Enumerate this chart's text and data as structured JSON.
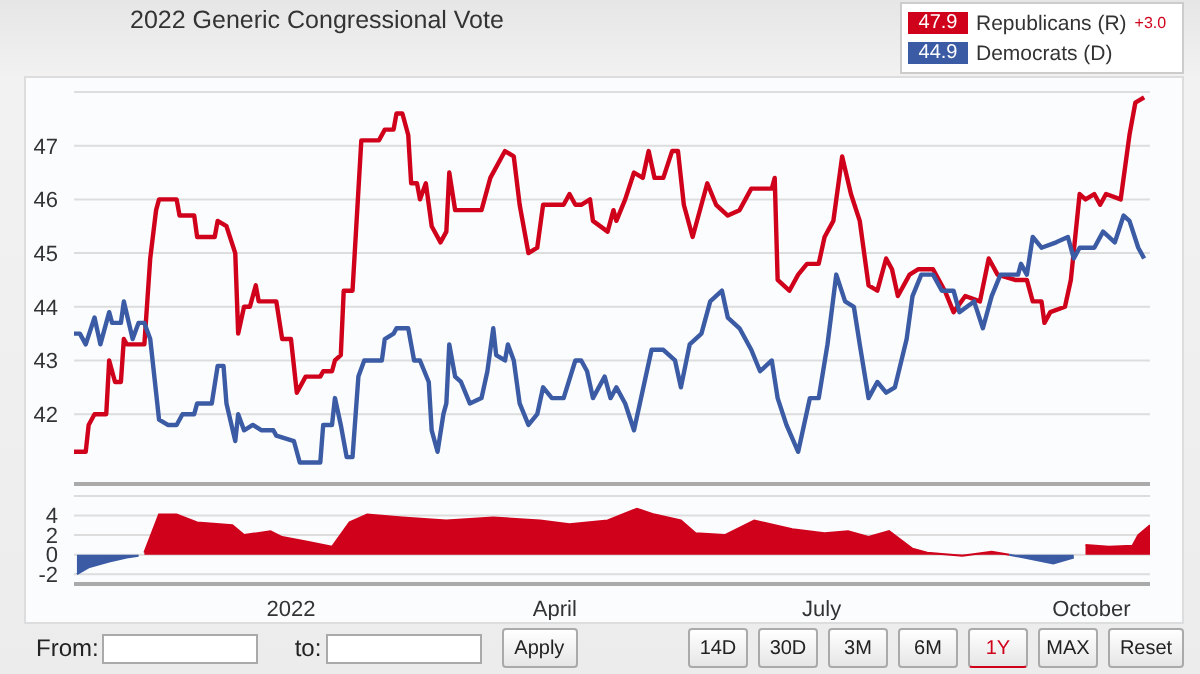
{
  "chart_data": [
    {
      "type": "line",
      "title": "2022 Generic Congressional Vote",
      "ylim": [
        40.7,
        48.0
      ],
      "yticks": [
        42,
        43,
        44,
        45,
        46,
        47
      ],
      "xlim": [
        "2021-10-19",
        "2022-10-21"
      ],
      "grid": "y",
      "legend": "top right",
      "tick_labels": "y",
      "annotations": [
        "47.9",
        "+3.0",
        "44.9"
      ],
      "series": [
        {
          "name": "Republicans (R)",
          "color": "#d0021b",
          "x": [
            "2021-10-19",
            "2021-10-23",
            "2021-10-24",
            "2021-10-26",
            "2021-10-30",
            "2021-10-31",
            "2021-11-02",
            "2021-11-04",
            "2021-11-05",
            "2021-11-06",
            "2021-11-12",
            "2021-11-14",
            "2021-11-16",
            "2021-11-17",
            "2021-11-23",
            "2021-11-24",
            "2021-11-29",
            "2021-11-30",
            "2021-12-06",
            "2021-12-07",
            "2021-12-10",
            "2021-12-13",
            "2021-12-14",
            "2021-12-16",
            "2021-12-18",
            "2021-12-20",
            "2021-12-21",
            "2021-12-27",
            "2021-12-29",
            "2022-01-01",
            "2022-01-03",
            "2022-01-06",
            "2022-01-11",
            "2022-01-12",
            "2022-01-15",
            "2022-01-16",
            "2022-01-18",
            "2022-01-19",
            "2022-01-22",
            "2022-01-25",
            "2022-01-31",
            "2022-02-02",
            "2022-02-05",
            "2022-02-06",
            "2022-02-08",
            "2022-02-10",
            "2022-02-11",
            "2022-02-13",
            "2022-02-14",
            "2022-02-16",
            "2022-02-18",
            "2022-02-21",
            "2022-02-23",
            "2022-02-24",
            "2022-02-26",
            "2022-03-07",
            "2022-03-10",
            "2022-03-12",
            "2022-03-15",
            "2022-03-18",
            "2022-03-20",
            "2022-03-23",
            "2022-03-26",
            "2022-03-28",
            "2022-04-04",
            "2022-04-06",
            "2022-04-08",
            "2022-04-10",
            "2022-04-13",
            "2022-04-14",
            "2022-04-19",
            "2022-04-21",
            "2022-04-22",
            "2022-04-25",
            "2022-04-28",
            "2022-05-01",
            "2022-05-03",
            "2022-05-05",
            "2022-05-08",
            "2022-05-11",
            "2022-05-13",
            "2022-05-15",
            "2022-05-18",
            "2022-05-23",
            "2022-05-26",
            "2022-05-30",
            "2022-06-03",
            "2022-06-07",
            "2022-06-14",
            "2022-06-15",
            "2022-06-16",
            "2022-06-20",
            "2022-06-23",
            "2022-06-26",
            "2022-06-30",
            "2022-07-02",
            "2022-07-05",
            "2022-07-08",
            "2022-07-11",
            "2022-07-14",
            "2022-07-17",
            "2022-07-20",
            "2022-07-23",
            "2022-07-25",
            "2022-07-27",
            "2022-07-31",
            "2022-08-03",
            "2022-08-08",
            "2022-08-12",
            "2022-08-15",
            "2022-08-19",
            "2022-08-24",
            "2022-08-27",
            "2022-08-30",
            "2022-09-05",
            "2022-09-09",
            "2022-09-11",
            "2022-09-14",
            "2022-09-15",
            "2022-09-17",
            "2022-09-22",
            "2022-09-24",
            "2022-09-27",
            "2022-09-29",
            "2022-10-02",
            "2022-10-04",
            "2022-10-06",
            "2022-10-11",
            "2022-10-14",
            "2022-10-16",
            "2022-10-19"
          ],
          "values": [
            41.3,
            41.3,
            41.8,
            42.0,
            42.0,
            43.0,
            42.6,
            42.6,
            43.4,
            43.3,
            43.3,
            44.9,
            45.8,
            46.0,
            46.0,
            45.7,
            45.7,
            45.3,
            45.3,
            45.6,
            45.5,
            45.0,
            43.5,
            44.0,
            44.0,
            44.4,
            44.1,
            44.1,
            43.4,
            43.4,
            42.4,
            42.7,
            42.7,
            42.8,
            42.8,
            43.0,
            43.1,
            44.3,
            44.3,
            47.1,
            47.1,
            47.3,
            47.3,
            47.6,
            47.6,
            47.2,
            46.3,
            46.3,
            46.0,
            46.3,
            45.5,
            45.2,
            45.4,
            46.5,
            45.8,
            45.8,
            46.4,
            46.6,
            46.9,
            46.8,
            45.9,
            45.0,
            45.1,
            45.9,
            45.9,
            46.1,
            45.9,
            45.9,
            46.0,
            45.6,
            45.4,
            45.8,
            45.6,
            46.0,
            46.5,
            46.4,
            46.9,
            46.4,
            46.4,
            46.9,
            46.9,
            45.9,
            45.3,
            46.3,
            45.9,
            45.7,
            45.8,
            46.2,
            46.2,
            46.4,
            44.5,
            44.3,
            44.6,
            44.8,
            44.8,
            45.3,
            45.6,
            46.8,
            46.1,
            45.6,
            44.4,
            44.3,
            44.9,
            44.7,
            44.2,
            44.6,
            44.7,
            44.7,
            44.3,
            43.9,
            44.2,
            44.1,
            44.9,
            44.6,
            44.5,
            44.5,
            44.1,
            44.1,
            43.7,
            43.9,
            44.0,
            44.5,
            46.1,
            46.0,
            46.1,
            45.9,
            46.1,
            46.0,
            47.2,
            47.8,
            47.9
          ]
        },
        {
          "name": "Democrats (D)",
          "color": "#3b5ba5",
          "x": [
            "2021-10-19",
            "2021-10-21",
            "2021-10-23",
            "2021-10-26",
            "2021-10-28",
            "2021-10-31",
            "2021-11-01",
            "2021-11-04",
            "2021-11-05",
            "2021-11-08",
            "2021-11-10",
            "2021-11-12",
            "2021-11-14",
            "2021-11-17",
            "2021-11-20",
            "2021-11-23",
            "2021-11-25",
            "2021-11-29",
            "2021-11-30",
            "2021-12-05",
            "2021-12-07",
            "2021-12-09",
            "2021-12-10",
            "2021-12-13",
            "2021-12-14",
            "2021-12-16",
            "2021-12-19",
            "2021-12-22",
            "2021-12-26",
            "2021-12-27",
            "2022-01-02",
            "2022-01-04",
            "2022-01-11",
            "2022-01-12",
            "2022-01-15",
            "2022-01-16",
            "2022-01-18",
            "2022-01-20",
            "2022-01-22",
            "2022-01-24",
            "2022-01-26",
            "2022-02-01",
            "2022-02-02",
            "2022-02-05",
            "2022-02-06",
            "2022-02-10",
            "2022-02-12",
            "2022-02-14",
            "2022-02-17",
            "2022-02-18",
            "2022-02-20",
            "2022-02-22",
            "2022-02-23",
            "2022-02-24",
            "2022-02-26",
            "2022-02-28",
            "2022-03-03",
            "2022-03-07",
            "2022-03-09",
            "2022-03-11",
            "2022-03-12",
            "2022-03-15",
            "2022-03-16",
            "2022-03-18",
            "2022-03-20",
            "2022-03-23",
            "2022-03-26",
            "2022-03-28",
            "2022-03-31",
            "2022-04-04",
            "2022-04-08",
            "2022-04-10",
            "2022-04-12",
            "2022-04-14",
            "2022-04-18",
            "2022-04-20",
            "2022-04-22",
            "2022-04-25",
            "2022-04-28",
            "2022-04-30",
            "2022-05-04",
            "2022-05-08",
            "2022-05-12",
            "2022-05-14",
            "2022-05-17",
            "2022-05-21",
            "2022-05-24",
            "2022-05-28",
            "2022-05-30",
            "2022-06-03",
            "2022-06-07",
            "2022-06-10",
            "2022-06-14",
            "2022-06-16",
            "2022-06-19",
            "2022-06-23",
            "2022-06-27",
            "2022-06-30",
            "2022-07-03",
            "2022-07-06",
            "2022-07-09",
            "2022-07-12",
            "2022-07-14",
            "2022-07-17",
            "2022-07-20",
            "2022-07-23",
            "2022-07-26",
            "2022-07-30",
            "2022-08-01",
            "2022-08-04",
            "2022-08-08",
            "2022-08-11",
            "2022-08-15",
            "2022-08-17",
            "2022-08-22",
            "2022-08-25",
            "2022-08-28",
            "2022-08-31",
            "2022-09-06",
            "2022-09-07",
            "2022-09-09",
            "2022-09-11",
            "2022-09-14",
            "2022-09-19",
            "2022-09-23",
            "2022-09-25",
            "2022-09-27",
            "2022-10-02",
            "2022-10-05",
            "2022-10-09",
            "2022-10-12",
            "2022-10-14",
            "2022-10-17",
            "2022-10-19"
          ],
          "values": [
            43.5,
            43.5,
            43.3,
            43.8,
            43.3,
            43.9,
            43.7,
            43.7,
            44.1,
            43.4,
            43.7,
            43.7,
            43.4,
            41.9,
            41.8,
            41.8,
            42.0,
            42.0,
            42.2,
            42.2,
            42.9,
            42.9,
            42.2,
            41.5,
            42.0,
            41.7,
            41.8,
            41.7,
            41.7,
            41.6,
            41.5,
            41.1,
            41.1,
            41.8,
            41.8,
            42.3,
            41.8,
            41.2,
            41.2,
            42.7,
            43.0,
            43.0,
            43.4,
            43.5,
            43.6,
            43.6,
            43.0,
            43.0,
            42.6,
            41.7,
            41.3,
            42.0,
            42.2,
            43.3,
            42.7,
            42.6,
            42.2,
            42.3,
            42.8,
            43.6,
            43.1,
            43.0,
            43.3,
            43.0,
            42.2,
            41.8,
            42.0,
            42.5,
            42.3,
            42.3,
            43.0,
            43.0,
            42.8,
            42.3,
            42.7,
            42.3,
            42.5,
            42.2,
            41.7,
            42.2,
            43.2,
            43.2,
            43.0,
            42.5,
            43.3,
            43.5,
            44.1,
            44.3,
            43.8,
            43.6,
            43.2,
            42.8,
            43.0,
            42.3,
            41.8,
            41.3,
            42.3,
            42.3,
            43.3,
            44.6,
            44.1,
            44.0,
            43.3,
            42.3,
            42.6,
            42.4,
            42.5,
            43.4,
            44.2,
            44.6,
            44.6,
            44.3,
            44.3,
            43.9,
            44.1,
            43.6,
            44.2,
            44.6,
            44.6,
            44.8,
            44.6,
            45.3,
            45.1,
            45.2,
            45.3,
            44.9,
            45.1,
            45.1,
            45.4,
            45.2,
            45.7,
            45.6,
            45.1,
            44.9
          ]
        }
      ]
    },
    {
      "type": "area",
      "x": [
        "2021-10-20",
        "2021-10-24",
        "2021-10-31",
        "2021-11-06",
        "2021-11-10",
        "2021-11-12",
        "2021-11-17",
        "2021-11-23",
        "2021-11-30",
        "2021-12-12",
        "2021-12-16",
        "2021-12-25",
        "2021-12-29",
        "2022-01-07",
        "2022-01-15",
        "2022-01-21",
        "2022-01-27",
        "2022-02-08",
        "2022-02-23",
        "2022-03-11",
        "2022-03-27",
        "2022-04-06",
        "2022-04-19",
        "2022-04-29",
        "2022-05-05",
        "2022-05-14",
        "2022-05-19",
        "2022-05-29",
        "2022-06-08",
        "2022-06-21",
        "2022-07-02",
        "2022-07-10",
        "2022-07-17",
        "2022-07-24",
        "2022-08-01",
        "2022-08-06",
        "2022-08-18",
        "2022-08-28",
        "2022-09-03",
        "2022-09-08",
        "2022-09-18",
        "2022-09-25",
        "2022-09-29",
        "2022-10-07",
        "2022-10-15",
        "2022-10-17",
        "2022-10-21"
      ],
      "xlim": [
        "2021-10-19",
        "2022-10-21"
      ],
      "xticks": [
        {
          "value": "2022-01-01",
          "label": "2022"
        },
        {
          "value": "2022-04-01",
          "label": "April"
        },
        {
          "value": "2022-07-01",
          "label": "July"
        },
        {
          "value": "2022-10-01",
          "label": "October"
        }
      ],
      "ylim": [
        -3,
        6
      ],
      "yticks": [
        -2,
        0,
        2,
        4
      ],
      "grid": "y",
      "annotations": [
        "From:",
        "to:",
        "Apply",
        "14D",
        "30D",
        "3M",
        "6M",
        "1Y",
        "MAX",
        "Reset"
      ],
      "series": [
        {
          "color": "#d0021b",
          "values": [
            null,
            null,
            null,
            null,
            null,
            0.2,
            4.1,
            4.1,
            3.3,
            3.0,
            2.0,
            2.4,
            1.8,
            1.3,
            0.8,
            3.3,
            4.1,
            3.8,
            3.5,
            3.8,
            3.5,
            3.1,
            3.5,
            4.7,
            4.1,
            3.5,
            2.2,
            2.0,
            3.5,
            2.6,
            2.2,
            2.4,
            1.8,
            2.4,
            0.6,
            0.2,
            -0.1,
            0.3,
            0.0,
            null,
            null,
            null,
            1.0,
            0.8,
            0.9,
            2.0,
            3.0
          ]
        },
        {
          "color": "#3b5ba5",
          "values": [
            -2.0,
            -1.3,
            -0.7,
            -0.3,
            -0.1,
            null,
            null,
            null,
            null,
            null,
            null,
            null,
            null,
            null,
            null,
            null,
            null,
            null,
            null,
            null,
            null,
            null,
            null,
            null,
            null,
            null,
            null,
            null,
            null,
            null,
            null,
            null,
            null,
            null,
            null,
            null,
            null,
            null,
            0.0,
            -0.3,
            -0.9,
            -0.3,
            null,
            null,
            null,
            null,
            null
          ]
        }
      ]
    }
  ]
}
